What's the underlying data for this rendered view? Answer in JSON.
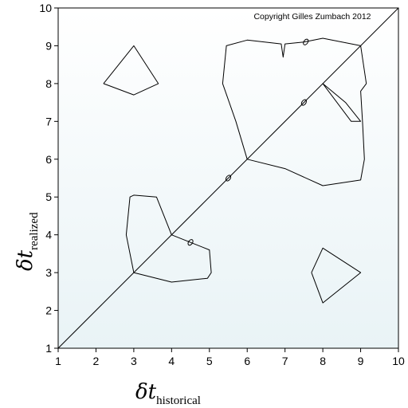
{
  "chart_data": {
    "type": "contour",
    "copyright": "Copyright Gilles Zumbach 2012",
    "xlabel": {
      "symbol": "δt",
      "subscript": "historical"
    },
    "ylabel": {
      "symbol": "δt",
      "subscript": "realized"
    },
    "xlim": [
      1,
      10
    ],
    "ylim": [
      1,
      10
    ],
    "xticks": [
      1,
      2,
      3,
      4,
      5,
      6,
      7,
      8,
      9,
      10
    ],
    "yticks": [
      1,
      2,
      3,
      4,
      5,
      6,
      7,
      8,
      9,
      10
    ],
    "grid": false,
    "reference_line": {
      "name": "diagonal",
      "from": [
        1,
        1
      ],
      "to": [
        10,
        10
      ]
    },
    "colors": {
      "background_top": "#ffffff",
      "background_bottom": "#e9f3f6",
      "line": "#000000"
    },
    "contours": [
      {
        "name": "upper-left-island",
        "points": [
          [
            2.2,
            8.0
          ],
          [
            3.0,
            9.0
          ],
          [
            3.65,
            8.0
          ],
          [
            3.0,
            7.7
          ],
          [
            2.2,
            8.0
          ]
        ]
      },
      {
        "name": "lower-right-island",
        "points": [
          [
            7.7,
            3.0
          ],
          [
            8.0,
            3.65
          ],
          [
            9.0,
            3.0
          ],
          [
            8.0,
            2.2
          ],
          [
            7.7,
            3.0
          ]
        ]
      },
      {
        "name": "lower-left-region",
        "points": [
          [
            3.0,
            3.0
          ],
          [
            2.8,
            4.0
          ],
          [
            2.9,
            5.0
          ],
          [
            3.0,
            5.05
          ],
          [
            3.6,
            5.0
          ],
          [
            4.0,
            4.0
          ],
          [
            4.5,
            3.8
          ],
          [
            5.0,
            3.6
          ],
          [
            5.05,
            3.0
          ],
          [
            4.95,
            2.85
          ],
          [
            4.0,
            2.75
          ],
          [
            3.0,
            3.0
          ]
        ]
      },
      {
        "name": "upper-right-region",
        "points": [
          [
            6.0,
            6.0
          ],
          [
            7.0,
            5.75
          ],
          [
            8.0,
            5.3
          ],
          [
            9.0,
            5.45
          ],
          [
            9.1,
            6.0
          ],
          [
            9.05,
            7.0
          ],
          [
            9.0,
            7.8
          ],
          [
            9.15,
            8.0
          ],
          [
            9.0,
            9.0
          ],
          [
            8.0,
            9.2
          ],
          [
            7.5,
            9.1
          ],
          [
            7.0,
            9.05
          ],
          [
            6.95,
            8.7
          ],
          [
            6.9,
            9.05
          ],
          [
            6.0,
            9.15
          ],
          [
            5.45,
            9.0
          ],
          [
            5.35,
            8.0
          ],
          [
            5.7,
            7.0
          ],
          [
            6.0,
            6.0
          ]
        ]
      },
      {
        "name": "upper-right-spike",
        "points": [
          [
            8.0,
            8.0
          ],
          [
            8.75,
            7.0
          ],
          [
            9.0,
            7.0
          ],
          [
            8.6,
            7.5
          ],
          [
            8.0,
            8.0
          ]
        ]
      }
    ],
    "markers": [
      {
        "name": "small-loop",
        "x": 4.5,
        "y": 3.8
      },
      {
        "name": "small-loop",
        "x": 5.5,
        "y": 5.5
      },
      {
        "name": "small-loop",
        "x": 7.5,
        "y": 7.5
      },
      {
        "name": "small-loop",
        "x": 7.55,
        "y": 9.1
      }
    ]
  }
}
